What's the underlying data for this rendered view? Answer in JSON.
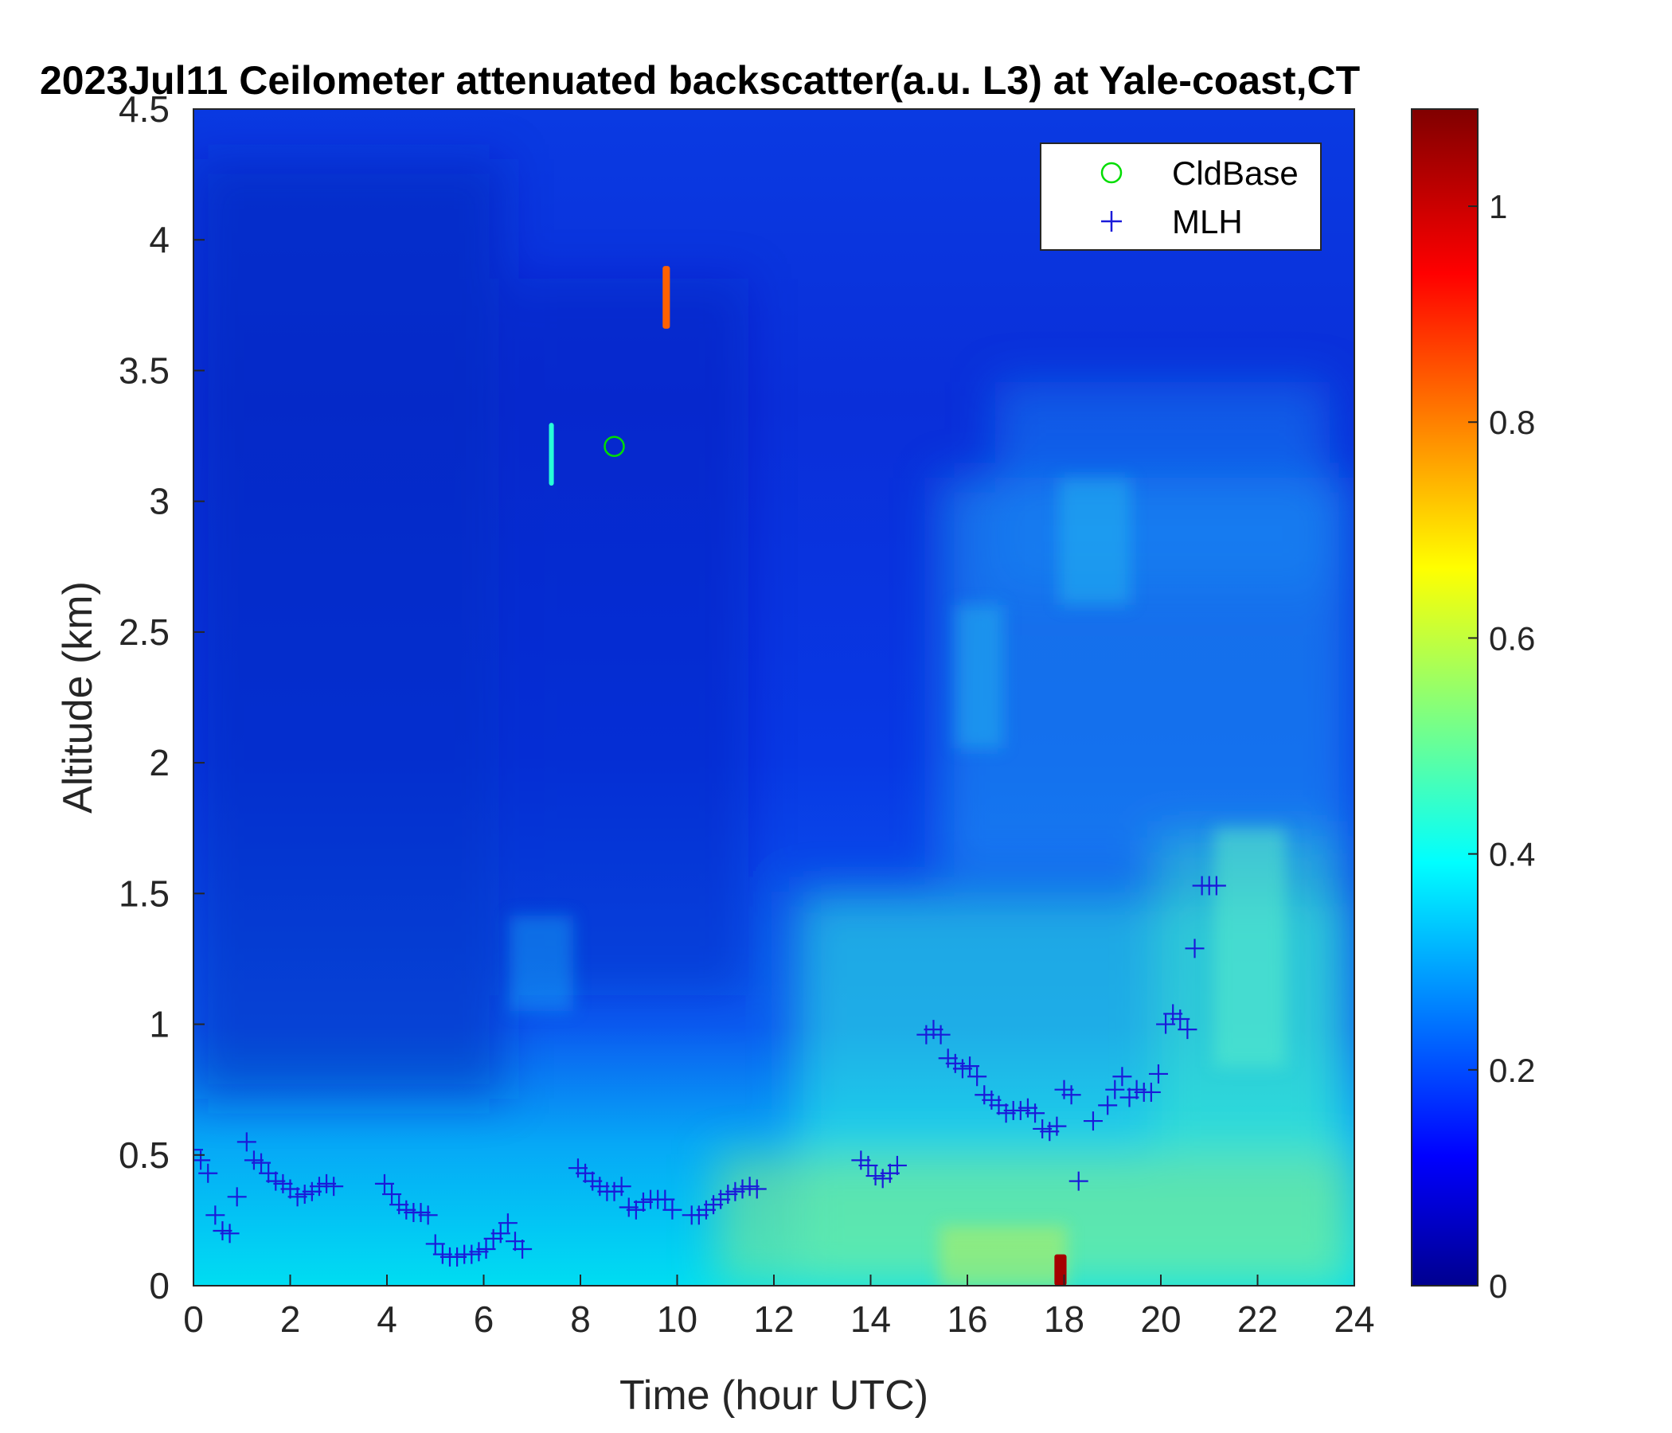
{
  "chart_data": {
    "type": "heatmap",
    "title": "2023Jul11 Ceilometer attenuated backscatter(a.u. L3) at Yale-coast,CT",
    "xlabel": "Time (hour UTC)",
    "ylabel": "Altitude (km)",
    "xlim": [
      0,
      24
    ],
    "ylim": [
      0,
      4.5
    ],
    "x_ticks": [
      "0",
      "2",
      "4",
      "6",
      "8",
      "10",
      "12",
      "14",
      "16",
      "18",
      "20",
      "22",
      "24"
    ],
    "y_ticks": [
      "0",
      "0.5",
      "1",
      "1.5",
      "2",
      "2.5",
      "3",
      "3.5",
      "4",
      "4.5"
    ],
    "colorbar": {
      "colormap": "jet",
      "range": [
        0,
        1.09
      ],
      "ticks": [
        "0",
        "0.2",
        "0.4",
        "0.6",
        "0.8",
        "1"
      ]
    },
    "legend": {
      "position": "top-right",
      "entries": [
        {
          "label": "CldBase",
          "marker": "circle",
          "color": "#00dd00"
        },
        {
          "label": "MLH",
          "marker": "plus",
          "color": "#1a1ad9"
        }
      ]
    },
    "series": [
      {
        "name": "CldBase",
        "x": [
          8.7
        ],
        "y": [
          3.21
        ]
      },
      {
        "name": "MLH",
        "x": [
          0.0,
          0.15,
          0.3,
          0.45,
          0.6,
          0.75,
          0.9,
          1.1,
          1.25,
          1.4,
          1.55,
          1.7,
          1.85,
          2.0,
          2.15,
          2.3,
          2.45,
          2.6,
          2.75,
          2.9,
          3.95,
          4.1,
          4.25,
          4.4,
          4.55,
          4.7,
          4.85,
          5.0,
          5.15,
          5.3,
          5.45,
          5.6,
          5.75,
          5.9,
          6.05,
          6.2,
          6.35,
          6.5,
          6.65,
          6.8,
          7.95,
          8.1,
          8.25,
          8.4,
          8.55,
          8.7,
          8.85,
          9.0,
          9.15,
          9.3,
          9.45,
          9.6,
          9.75,
          9.9,
          10.3,
          10.45,
          10.6,
          10.75,
          10.9,
          11.05,
          11.2,
          11.35,
          11.5,
          11.65,
          13.8,
          13.95,
          14.1,
          14.25,
          14.4,
          14.55,
          15.15,
          15.3,
          15.45,
          15.6,
          15.75,
          15.9,
          16.05,
          16.2,
          16.35,
          16.5,
          16.65,
          16.8,
          16.95,
          17.1,
          17.25,
          17.4,
          17.55,
          17.7,
          17.85,
          18.0,
          18.15,
          18.3,
          18.6,
          18.9,
          19.05,
          19.2,
          19.35,
          19.5,
          19.65,
          19.8,
          19.95,
          20.1,
          20.25,
          20.4,
          20.55,
          20.7,
          20.85,
          21.0,
          21.15
        ],
        "y": [
          0.52,
          0.48,
          0.43,
          0.27,
          0.21,
          0.2,
          0.34,
          0.55,
          0.48,
          0.47,
          0.43,
          0.4,
          0.39,
          0.37,
          0.34,
          0.35,
          0.36,
          0.38,
          0.39,
          0.38,
          0.39,
          0.35,
          0.31,
          0.29,
          0.28,
          0.28,
          0.27,
          0.16,
          0.12,
          0.11,
          0.11,
          0.12,
          0.12,
          0.13,
          0.14,
          0.18,
          0.2,
          0.24,
          0.17,
          0.14,
          0.45,
          0.43,
          0.4,
          0.38,
          0.36,
          0.36,
          0.38,
          0.3,
          0.29,
          0.32,
          0.33,
          0.33,
          0.33,
          0.29,
          0.27,
          0.27,
          0.29,
          0.31,
          0.33,
          0.35,
          0.36,
          0.37,
          0.38,
          0.37,
          0.48,
          0.46,
          0.42,
          0.41,
          0.43,
          0.46,
          0.96,
          0.98,
          0.96,
          0.87,
          0.85,
          0.83,
          0.84,
          0.8,
          0.73,
          0.71,
          0.69,
          0.66,
          0.67,
          0.67,
          0.68,
          0.66,
          0.6,
          0.59,
          0.61,
          0.75,
          0.73,
          0.4,
          0.63,
          0.69,
          0.75,
          0.8,
          0.72,
          0.75,
          0.74,
          0.74,
          0.81,
          1.0,
          1.04,
          1.02,
          0.98,
          1.29,
          1.53,
          1.53,
          1.53
        ]
      }
    ],
    "features": [
      {
        "name": "cloud-streak-1",
        "x": [
          7.35,
          7.45
        ],
        "y": [
          3.06,
          3.3
        ],
        "value": 0.45
      },
      {
        "name": "cloud-streak-2",
        "x": [
          9.7,
          9.85
        ],
        "y": [
          3.66,
          3.9
        ],
        "value": 0.85
      },
      {
        "name": "surface-hotspot",
        "x": [
          17.8,
          18.05
        ],
        "y": [
          0.0,
          0.12
        ],
        "value": 1.05
      }
    ]
  }
}
